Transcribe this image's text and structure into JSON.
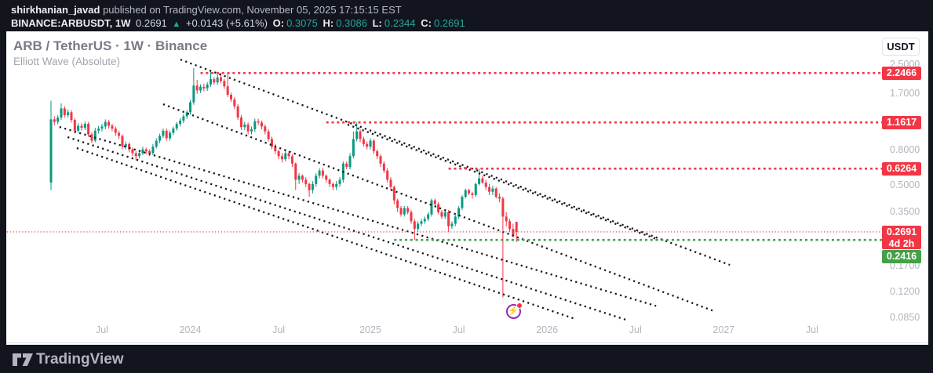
{
  "header": {
    "author": "shirkhanian_javad",
    "published": " published on TradingView.com, November 05, 2025 17:15:15 EST",
    "symbol_tf": "BINANCE:ARBUSDT, 1W",
    "last_price": "0.2691",
    "arrow": "▲",
    "change": "+0.0143 (+5.61%)",
    "o_label": "O:",
    "o_value": "0.3075",
    "h_label": "H:",
    "h_value": "0.3086",
    "l_label": "L:",
    "l_value": "0.2344",
    "c_label": "C:",
    "c_value": "0.2691"
  },
  "chart_header": {
    "title": "ARB / TetherUS · 1W · Binance",
    "subtitle": "Elliott Wave (Absolute)"
  },
  "axis": {
    "currency_button": "USDT"
  },
  "footer": {
    "brand": "TradingView"
  },
  "colors": {
    "up": "#089981",
    "down": "#f23645",
    "level_red": "#f23645",
    "level_green": "#43a047",
    "trendline": "#16191f",
    "accent_teal": "#26a69a",
    "badge_red": "#f23645",
    "badge_green": "#43a047"
  },
  "chart_data": {
    "type": "candlestick",
    "symbol": "BINANCE:ARBUSDT",
    "interval": "1W",
    "scale": "log",
    "title": "ARB / TetherUS · 1W · Binance",
    "indicator": "Elliott Wave (Absolute)",
    "y_ticks": [
      2.5,
      1.7,
      0.8,
      0.5,
      0.35,
      0.17,
      0.12,
      0.085
    ],
    "x_ticks": [
      {
        "week": 15,
        "label": "Jul"
      },
      {
        "week": 41,
        "label": "2024"
      },
      {
        "week": 67,
        "label": "Jul"
      },
      {
        "week": 94,
        "label": "2025"
      },
      {
        "week": 120,
        "label": "Jul"
      },
      {
        "week": 146,
        "label": "2026"
      },
      {
        "week": 172,
        "label": "Jul"
      },
      {
        "week": 198,
        "label": "2027"
      },
      {
        "week": 224,
        "label": "Jul"
      }
    ],
    "levels": [
      {
        "price": 2.2466,
        "badge": "2.2466",
        "color": "#f23645",
        "style": "dotted",
        "from_week": 44
      },
      {
        "price": 1.1617,
        "badge": "1.1617",
        "color": "#f23645",
        "style": "dotted",
        "from_week": 81
      },
      {
        "price": 0.6264,
        "badge": "0.6264",
        "color": "#f23645",
        "style": "dotted",
        "from_week": 117
      },
      {
        "price": 0.2691,
        "badge": "0.2691",
        "sub": "4d 2h",
        "color": "#f23645",
        "style": "fine",
        "from_week": -13
      },
      {
        "price": 0.2416,
        "badge": "0.2416",
        "color": "#43a047",
        "style": "dotted",
        "from_week": 101,
        "badge_dy": 21
      }
    ],
    "trendlines": [
      {
        "w1": 38.1,
        "p1": 2.69,
        "w2": 199.8,
        "p2": 0.173
      },
      {
        "w1": 87.3,
        "p1": 1.128,
        "w2": 178.1,
        "p2": 0.245
      },
      {
        "w1": 33.0,
        "p1": 1.481,
        "w2": 194.7,
        "p2": 0.094
      },
      {
        "w1": 2.5,
        "p1": 1.093,
        "w2": 178.1,
        "p2": 0.1
      },
      {
        "w1": 4.9,
        "p1": 0.954,
        "w2": 169.3,
        "p2": 0.083
      },
      {
        "w1": 7.6,
        "p1": 0.824,
        "w2": 154.3,
        "p2": 0.084
      }
    ],
    "marker": {
      "week": 136.5,
      "price": 0.0914,
      "icon": "lightning-boost"
    },
    "candles": [
      [
        0.52,
        1.55,
        0.47,
        1.21
      ],
      [
        1.21,
        1.26,
        1.12,
        1.17
      ],
      [
        1.17,
        1.28,
        1.13,
        1.24
      ],
      [
        1.24,
        1.5,
        1.2,
        1.4
      ],
      [
        1.4,
        1.44,
        1.24,
        1.28
      ],
      [
        1.28,
        1.38,
        1.24,
        1.33
      ],
      [
        1.33,
        1.37,
        1.16,
        1.2
      ],
      [
        1.2,
        1.23,
        1.0,
        1.04
      ],
      [
        1.04,
        1.15,
        1.01,
        1.11
      ],
      [
        1.11,
        1.15,
        1.04,
        1.08
      ],
      [
        1.08,
        1.18,
        1.05,
        1.14
      ],
      [
        1.14,
        1.17,
        0.96,
        0.99
      ],
      [
        0.99,
        1.02,
        0.88,
        0.91
      ],
      [
        0.91,
        1.08,
        0.89,
        1.04
      ],
      [
        1.04,
        1.11,
        1.0,
        1.07
      ],
      [
        1.07,
        1.14,
        1.03,
        1.1
      ],
      [
        1.1,
        1.21,
        1.06,
        1.17
      ],
      [
        1.17,
        1.2,
        1.07,
        1.11
      ],
      [
        1.11,
        1.14,
        1.03,
        1.07
      ],
      [
        1.07,
        1.1,
        0.97,
        1.01
      ],
      [
        1.01,
        1.04,
        0.93,
        0.97
      ],
      [
        0.97,
        0.99,
        0.81,
        0.84
      ],
      [
        0.84,
        0.9,
        0.81,
        0.87
      ],
      [
        0.87,
        0.89,
        0.78,
        0.81
      ],
      [
        0.81,
        0.83,
        0.74,
        0.77
      ],
      [
        0.77,
        0.79,
        0.7,
        0.74
      ],
      [
        0.74,
        0.8,
        0.72,
        0.77
      ],
      [
        0.77,
        0.84,
        0.75,
        0.81
      ],
      [
        0.81,
        0.83,
        0.76,
        0.79
      ],
      [
        0.79,
        0.81,
        0.74,
        0.77
      ],
      [
        0.77,
        0.87,
        0.75,
        0.84
      ],
      [
        0.84,
        0.94,
        0.82,
        0.91
      ],
      [
        0.91,
        1.0,
        0.88,
        0.97
      ],
      [
        0.97,
        1.07,
        0.94,
        1.04
      ],
      [
        1.04,
        1.07,
        0.91,
        0.94
      ],
      [
        0.94,
        1.04,
        0.91,
        1.01
      ],
      [
        1.01,
        1.1,
        0.98,
        1.07
      ],
      [
        1.07,
        1.17,
        1.04,
        1.14
      ],
      [
        1.14,
        1.23,
        1.1,
        1.19
      ],
      [
        1.19,
        1.3,
        1.15,
        1.26
      ],
      [
        1.26,
        1.37,
        1.22,
        1.33
      ],
      [
        1.33,
        1.57,
        1.29,
        1.52
      ],
      [
        1.52,
        2.4,
        1.47,
        1.9
      ],
      [
        1.9,
        2.05,
        1.7,
        1.78
      ],
      [
        1.78,
        1.93,
        1.72,
        1.87
      ],
      [
        1.87,
        1.95,
        1.76,
        1.83
      ],
      [
        1.83,
        1.99,
        1.77,
        1.93
      ],
      [
        1.93,
        2.3,
        1.87,
        2.07
      ],
      [
        2.07,
        2.13,
        1.92,
        1.98
      ],
      [
        1.98,
        2.28,
        1.92,
        2.12
      ],
      [
        2.12,
        2.25,
        1.96,
        2.02
      ],
      [
        2.02,
        2.08,
        1.82,
        1.88
      ],
      [
        1.88,
        2.22,
        1.63,
        1.68
      ],
      [
        1.68,
        1.73,
        1.53,
        1.58
      ],
      [
        1.58,
        1.63,
        1.39,
        1.44
      ],
      [
        1.44,
        1.48,
        1.2,
        1.24
      ],
      [
        1.24,
        1.28,
        1.05,
        1.09
      ],
      [
        1.09,
        1.17,
        1.05,
        1.13
      ],
      [
        1.13,
        1.16,
        0.99,
        1.03
      ],
      [
        1.03,
        1.1,
        0.99,
        1.06
      ],
      [
        1.06,
        1.22,
        1.02,
        1.18
      ],
      [
        1.18,
        1.22,
        1.12,
        1.16
      ],
      [
        1.16,
        1.19,
        1.06,
        1.1
      ],
      [
        1.1,
        1.13,
        0.99,
        1.03
      ],
      [
        1.03,
        1.06,
        0.9,
        0.93
      ],
      [
        0.93,
        0.96,
        0.81,
        0.84
      ],
      [
        0.84,
        0.87,
        0.76,
        0.79
      ],
      [
        0.79,
        0.81,
        0.71,
        0.74
      ],
      [
        0.74,
        0.77,
        0.68,
        0.71
      ],
      [
        0.71,
        0.8,
        0.69,
        0.77
      ],
      [
        0.77,
        0.79,
        0.71,
        0.74
      ],
      [
        0.74,
        0.76,
        0.64,
        0.67
      ],
      [
        0.67,
        0.68,
        0.47,
        0.54
      ],
      [
        0.54,
        0.59,
        0.51,
        0.57
      ],
      [
        0.57,
        0.58,
        0.52,
        0.54
      ],
      [
        0.54,
        0.56,
        0.49,
        0.51
      ],
      [
        0.51,
        0.52,
        0.43,
        0.47
      ],
      [
        0.47,
        0.53,
        0.45,
        0.51
      ],
      [
        0.51,
        0.59,
        0.49,
        0.57
      ],
      [
        0.57,
        0.63,
        0.55,
        0.61
      ],
      [
        0.61,
        0.63,
        0.55,
        0.57
      ],
      [
        0.57,
        0.58,
        0.52,
        0.54
      ],
      [
        0.54,
        0.55,
        0.49,
        0.51
      ],
      [
        0.51,
        0.52,
        0.47,
        0.49
      ],
      [
        0.49,
        0.53,
        0.47,
        0.51
      ],
      [
        0.51,
        0.56,
        0.49,
        0.54
      ],
      [
        0.54,
        0.69,
        0.52,
        0.67
      ],
      [
        0.67,
        0.69,
        0.62,
        0.64
      ],
      [
        0.64,
        0.77,
        0.62,
        0.74
      ],
      [
        0.74,
        1.03,
        0.72,
        0.93
      ],
      [
        0.93,
        1.1617,
        0.9,
        1.03
      ],
      [
        1.03,
        1.06,
        0.89,
        0.93
      ],
      [
        0.93,
        0.96,
        0.84,
        0.87
      ],
      [
        0.87,
        0.9,
        0.81,
        0.84
      ],
      [
        0.84,
        0.94,
        0.81,
        0.91
      ],
      [
        0.91,
        0.93,
        0.76,
        0.79
      ],
      [
        0.79,
        0.81,
        0.71,
        0.74
      ],
      [
        0.74,
        0.76,
        0.64,
        0.67
      ],
      [
        0.67,
        0.69,
        0.59,
        0.61
      ],
      [
        0.61,
        0.63,
        0.52,
        0.54
      ],
      [
        0.54,
        0.56,
        0.47,
        0.49
      ],
      [
        0.49,
        0.5,
        0.39,
        0.41
      ],
      [
        0.41,
        0.42,
        0.35,
        0.37
      ],
      [
        0.37,
        0.38,
        0.33,
        0.34
      ],
      [
        0.34,
        0.38,
        0.33,
        0.37
      ],
      [
        0.37,
        0.38,
        0.34,
        0.35
      ],
      [
        0.35,
        0.36,
        0.3,
        0.31
      ],
      [
        0.31,
        0.32,
        0.2416,
        0.28
      ],
      [
        0.28,
        0.31,
        0.27,
        0.3
      ],
      [
        0.3,
        0.32,
        0.29,
        0.31
      ],
      [
        0.31,
        0.33,
        0.3,
        0.32
      ],
      [
        0.32,
        0.35,
        0.31,
        0.34
      ],
      [
        0.34,
        0.42,
        0.33,
        0.41
      ],
      [
        0.41,
        0.42,
        0.38,
        0.39
      ],
      [
        0.39,
        0.4,
        0.34,
        0.35
      ],
      [
        0.35,
        0.36,
        0.32,
        0.33
      ],
      [
        0.33,
        0.36,
        0.32,
        0.35
      ],
      [
        0.35,
        0.36,
        0.268,
        0.29
      ],
      [
        0.29,
        0.31,
        0.28,
        0.3
      ],
      [
        0.3,
        0.34,
        0.29,
        0.33
      ],
      [
        0.33,
        0.38,
        0.32,
        0.37
      ],
      [
        0.37,
        0.44,
        0.36,
        0.43
      ],
      [
        0.43,
        0.48,
        0.42,
        0.47
      ],
      [
        0.47,
        0.48,
        0.44,
        0.45
      ],
      [
        0.45,
        0.46,
        0.42,
        0.44
      ],
      [
        0.44,
        0.52,
        0.43,
        0.51
      ],
      [
        0.51,
        0.6264,
        0.5,
        0.55
      ],
      [
        0.55,
        0.57,
        0.51,
        0.52
      ],
      [
        0.52,
        0.54,
        0.47,
        0.49
      ],
      [
        0.49,
        0.51,
        0.44,
        0.46
      ],
      [
        0.46,
        0.5,
        0.44,
        0.48
      ],
      [
        0.48,
        0.49,
        0.42,
        0.43
      ],
      [
        0.43,
        0.45,
        0.4,
        0.42
      ],
      [
        0.42,
        0.43,
        0.112,
        0.33
      ],
      [
        0.33,
        0.35,
        0.29,
        0.31
      ],
      [
        0.31,
        0.32,
        0.27,
        0.28
      ],
      [
        0.28,
        0.3,
        0.25,
        0.2548
      ],
      [
        0.3075,
        0.3086,
        0.2344,
        0.2691
      ]
    ]
  }
}
